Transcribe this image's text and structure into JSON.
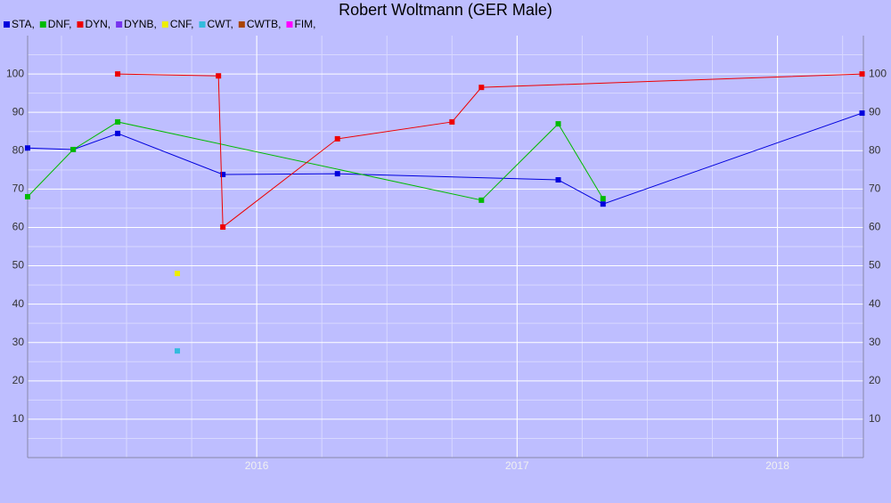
{
  "chart_data": {
    "type": "line",
    "title": "Robert Woltmann (GER Male)",
    "xlim": [
      2015.12,
      2018.33
    ],
    "xticks": [
      2016,
      2017,
      2018
    ],
    "ylim": [
      0,
      110
    ],
    "yticks": [
      10,
      20,
      30,
      40,
      50,
      60,
      70,
      80,
      90,
      100
    ],
    "grid": true,
    "legend": "top-left",
    "series": [
      {
        "name": "STA,",
        "color": "#0000dd",
        "x": [
          2015.12,
          2015.295,
          2015.466,
          2015.87,
          2016.31,
          2017.158,
          2017.33,
          2018.325
        ],
        "values": [
          80.7,
          80.3,
          84.5,
          73.8,
          74.0,
          72.4,
          66.1,
          89.8
        ]
      },
      {
        "name": "DNF,",
        "color": "#00bb00",
        "x": [
          2015.12,
          2015.295,
          2015.466,
          2016.863,
          2017.158,
          2017.33
        ],
        "values": [
          68.0,
          80.3,
          87.5,
          67.1,
          87.0,
          67.5
        ]
      },
      {
        "name": "DYN,",
        "color": "#ee0000",
        "x": [
          2015.466,
          2015.853,
          2015.87,
          2016.31,
          2016.75,
          2016.863,
          2018.325
        ],
        "values": [
          100,
          99.5,
          60.1,
          83.1,
          87.5,
          96.5,
          100
        ]
      },
      {
        "name": "DYNB,",
        "color": "#7733ee",
        "x": [],
        "values": []
      },
      {
        "name": "CNF,",
        "color": "#eeee00",
        "x": [
          2015.695
        ],
        "values": [
          48.0
        ]
      },
      {
        "name": "CWT,",
        "color": "#33bbdd",
        "x": [
          2015.695
        ],
        "values": [
          27.8
        ]
      },
      {
        "name": "CWTB,",
        "color": "#aa4400",
        "x": [],
        "values": []
      },
      {
        "name": "FIM,",
        "color": "#ff00ff",
        "x": [],
        "values": []
      }
    ]
  }
}
